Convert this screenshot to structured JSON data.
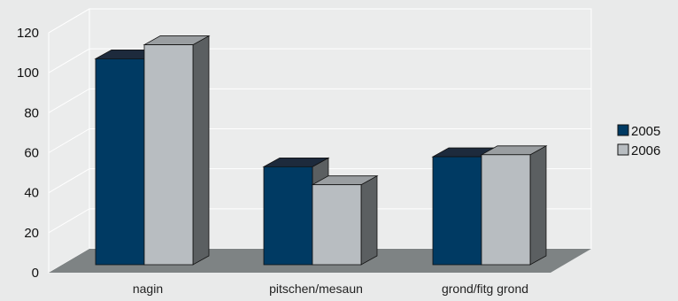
{
  "chart_data": {
    "type": "bar",
    "variant": "3d-clustered-column",
    "title": "",
    "xlabel": "",
    "ylabel": "",
    "categories": [
      "nagin",
      "pitschen/mesaun",
      "grond/fitg grond"
    ],
    "series": [
      {
        "name": "2005",
        "values": [
          103,
          49,
          54
        ],
        "color": "#003a63"
      },
      {
        "name": "2006",
        "values": [
          110,
          40,
          55
        ],
        "color": "#b8bdc1"
      }
    ],
    "ylim": [
      0,
      120
    ],
    "yticks": [
      0,
      20,
      40,
      60,
      80,
      100,
      120
    ],
    "grid": true,
    "legend_position": "right",
    "colors": {
      "background": "#e9eaea",
      "wall": "#ebecec",
      "gridline": "#ffffff",
      "floor": "#7e8384",
      "bar_side": "#5b5f61"
    }
  }
}
